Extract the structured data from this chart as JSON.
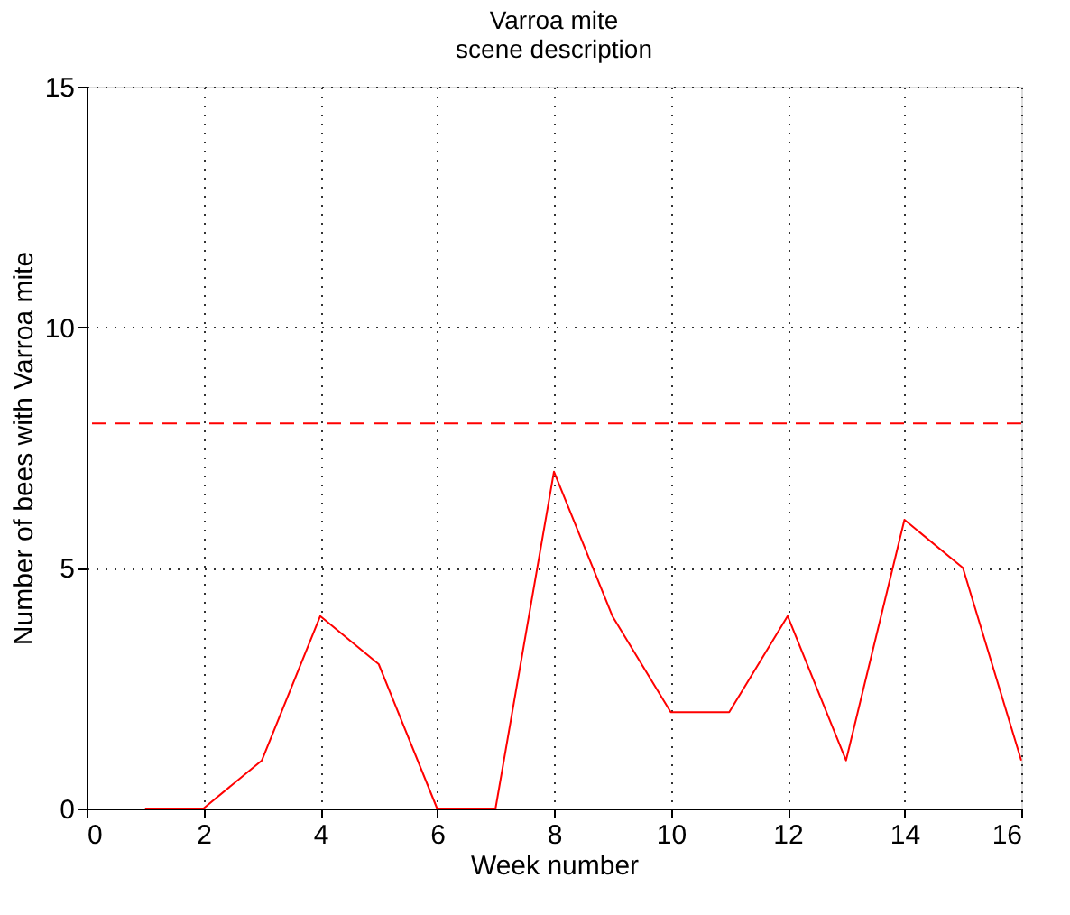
{
  "chart_data": {
    "type": "line",
    "title": "Varroa mite",
    "subtitle": "scene description",
    "xlabel": "Week number",
    "ylabel": "Number of bees with Varroa mite",
    "x": [
      1,
      2,
      3,
      4,
      5,
      6,
      7,
      8,
      9,
      10,
      11,
      12,
      13,
      14,
      15,
      16
    ],
    "series": [
      {
        "color": "#ff0000",
        "values": [
          0,
          0,
          1,
          4,
          3,
          0,
          0,
          7,
          4,
          2,
          2,
          4,
          1,
          6,
          5,
          1
        ]
      }
    ],
    "xlim": [
      0,
      16
    ],
    "xticks": [
      0,
      2,
      4,
      6,
      8,
      10,
      12,
      14,
      16
    ],
    "ylim": [
      0,
      15
    ],
    "yticks": [
      0,
      5,
      10,
      15
    ],
    "ref_lines": [
      {
        "axis": "y",
        "value": 8,
        "color": "#ff0000",
        "line_style": "dashed"
      }
    ],
    "grid": true,
    "marker": "none",
    "line_style": "solid"
  }
}
